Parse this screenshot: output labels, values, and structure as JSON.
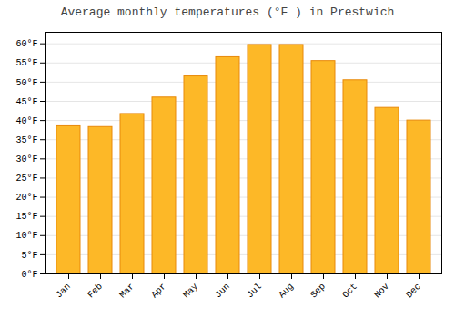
{
  "chart_data": {
    "type": "bar",
    "title": "Average monthly temperatures (°F ) in Prestwich",
    "categories": [
      "Jan",
      "Feb",
      "Mar",
      "Apr",
      "May",
      "Jun",
      "Jul",
      "Aug",
      "Sep",
      "Oct",
      "Nov",
      "Dec"
    ],
    "values": [
      38.5,
      38.3,
      41.7,
      46.0,
      51.5,
      56.5,
      59.7,
      59.7,
      55.5,
      50.5,
      43.3,
      40.0
    ],
    "color": "#FDB827",
    "ylim": [
      0,
      63
    ],
    "yticks": [
      {
        "value": 0,
        "label": "0°F"
      },
      {
        "value": 5,
        "label": "5°F"
      },
      {
        "value": 10,
        "label": "10°F"
      },
      {
        "value": 15,
        "label": "15°F"
      },
      {
        "value": 20,
        "label": "20°F"
      },
      {
        "value": 25,
        "label": "25°F"
      },
      {
        "value": 30,
        "label": "30°F"
      },
      {
        "value": 35,
        "label": "35°F"
      },
      {
        "value": 40,
        "label": "40°F"
      },
      {
        "value": 45,
        "label": "45°F"
      },
      {
        "value": 50,
        "label": "50°F"
      },
      {
        "value": 55,
        "label": "55°F"
      },
      {
        "value": 60,
        "label": "60°F"
      }
    ],
    "grid": true
  }
}
